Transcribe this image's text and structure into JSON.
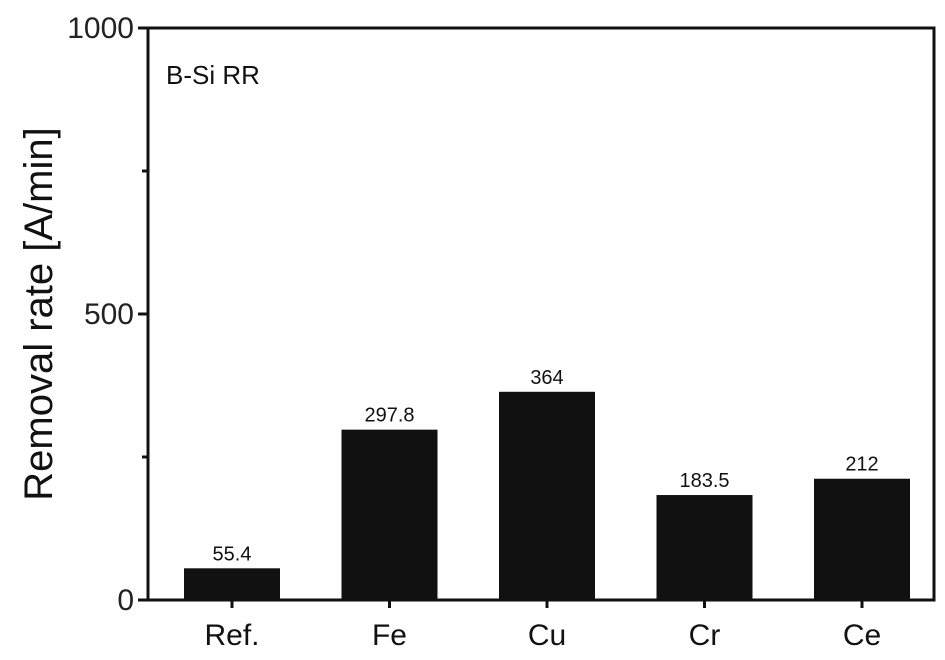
{
  "chart_data": {
    "type": "bar",
    "categories": [
      "Ref.",
      "Fe",
      "Cu",
      "Cr",
      "Ce"
    ],
    "values": [
      55.4,
      297.8,
      364,
      183.5,
      212
    ],
    "value_labels": [
      "55.4",
      "297.8",
      "364",
      "183.5",
      "212"
    ],
    "ylabel": "Removal rate [A/min]",
    "annotation": "B-Si RR",
    "ylim": [
      0,
      1000
    ],
    "yticks": [
      0,
      500,
      1000
    ],
    "yticks_minor": [
      250,
      750
    ],
    "grid": false,
    "bar_color": "#111111"
  }
}
